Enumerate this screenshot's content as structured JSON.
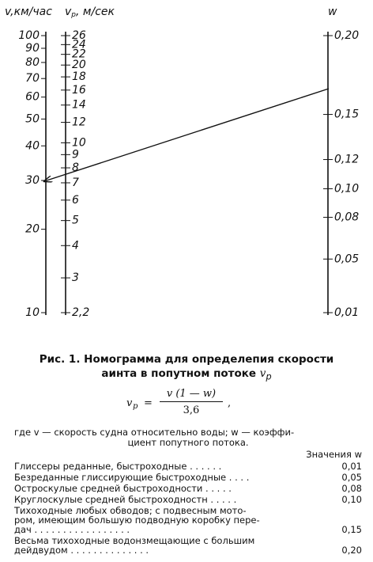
{
  "nomogram": {
    "left_scale": {
      "symbol": "v",
      "unit": ",км/час",
      "ticks": [
        10,
        20,
        30,
        40,
        50,
        60,
        70,
        80,
        90,
        100
      ]
    },
    "middle_scale": {
      "symbol": "v",
      "subscript": "p",
      "unit": ", м/сек",
      "ticks": [
        {
          "value": 2.2,
          "label": "2,2"
        },
        3,
        4,
        5,
        6,
        7,
        8,
        9,
        10,
        12,
        14,
        16,
        18,
        20,
        22,
        24,
        26
      ]
    },
    "right_scale": {
      "symbol": "w",
      "ticks": [
        {
          "value": 0.01,
          "label": "0,01"
        },
        {
          "value": 0.05,
          "label": "0,05"
        },
        {
          "value": 0.08,
          "label": "0,08"
        },
        {
          "value": 0.1,
          "label": "0,10"
        },
        {
          "value": 0.12,
          "label": "0,12"
        },
        {
          "value": 0.15,
          "label": "0,15"
        },
        {
          "value": 0.2,
          "label": "0,20"
        }
      ]
    }
  },
  "caption": {
    "line1": "Рис. 1. Номограмма для определепия скорости",
    "line2": "аинта в попутном потоке",
    "symbol": "v",
    "subscript": "p"
  },
  "formula": {
    "lhs": "v",
    "lhs_sub": "p",
    "equals": "=",
    "numerator": "v (1 — w)",
    "denominator": "3,6",
    "trailing": ","
  },
  "explanation": [
    "где v — скорость судна относительно воды; w — коэффи-",
    "циент попутного потока."
  ],
  "table": {
    "header": "Значения w",
    "rows": [
      {
        "lines": [
          "Глиссеры реданные, быстроходные . . . . . ."
        ],
        "value": "0,01"
      },
      {
        "lines": [
          "Безреданные глиссирующие быстроходные . . . ."
        ],
        "value": "0,05"
      },
      {
        "lines": [
          "Остроскулые средней быстроходности . . . . ."
        ],
        "value": "0,08"
      },
      {
        "lines": [
          "Круглоскулые средней быстроходностн . . . . ."
        ],
        "value": "0,10"
      },
      {
        "lines": [
          "Тихоходные любых обводов; с подвесным мото-",
          "ром, имеющим большую подводную коробку пере-",
          "дач . . . . . . . . . . . . . . . . ."
        ],
        "value": "0,15"
      },
      {
        "lines": [
          "Весьма тихоходные водонзмещающие с большим",
          "дейдвудом . . . . . . . . . . . . . ."
        ],
        "value": "0,20"
      }
    ]
  }
}
